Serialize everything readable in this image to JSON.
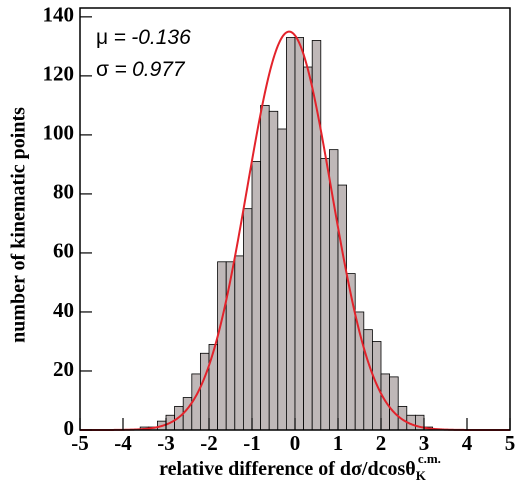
{
  "chart_data": {
    "type": "histogram",
    "xlabel": "relative difference of dσ/dcosθ",
    "xlabel_sub": "K",
    "xlabel_sup": "c.m.",
    "ylabel": "number of kinematic points",
    "bins": [
      -3.6,
      -3.4,
      -3.2,
      -3.0,
      -2.8,
      -2.6,
      -2.4,
      -2.2,
      -2.0,
      -1.8,
      -1.6,
      -1.4,
      -1.2,
      -1.0,
      -0.8,
      -0.6,
      -0.4,
      -0.2,
      0.0,
      0.2,
      0.4,
      0.6,
      0.8,
      1.0,
      1.2,
      1.4,
      1.6,
      1.8,
      2.0,
      2.2,
      2.4,
      2.6,
      2.8,
      3.0,
      3.2,
      3.4
    ],
    "counts": [
      1,
      1,
      3,
      5,
      8,
      11,
      19,
      26,
      29,
      57,
      57,
      59,
      75,
      91,
      110,
      108,
      102,
      133,
      133,
      123,
      132,
      92,
      95,
      83,
      53,
      40,
      34,
      30,
      19,
      18,
      8,
      5,
      5,
      1,
      0
    ],
    "color": "#bfb8b8",
    "fit": {
      "mu_label": "μ =",
      "mu": -0.136,
      "sigma_label": "σ =",
      "sigma": 0.977,
      "amplitude": 135,
      "color": "#e3232b"
    },
    "xlim": [
      -5,
      5
    ],
    "ylim": [
      0,
      143
    ],
    "xticks": [
      -5,
      -4,
      -3,
      -2,
      -1,
      0,
      1,
      2,
      3,
      4,
      5
    ],
    "yticks": [
      0,
      20,
      40,
      60,
      80,
      100,
      120,
      140
    ]
  }
}
